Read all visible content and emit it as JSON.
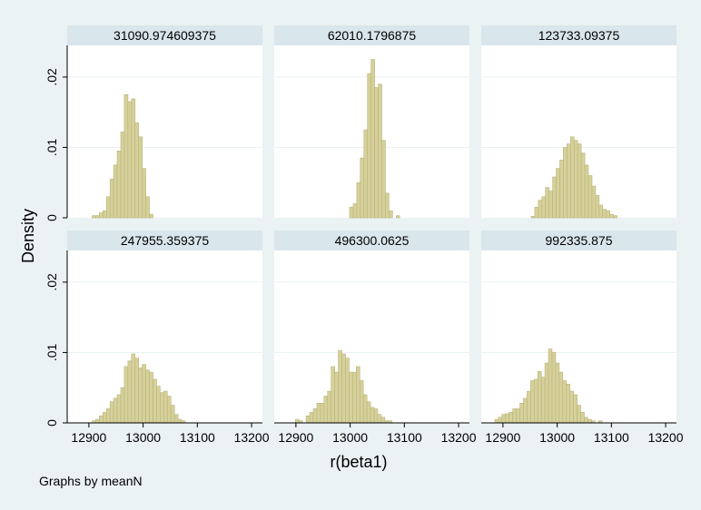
{
  "chart_data": {
    "type": "histogram",
    "ylabel": "Density",
    "xlabel": "r(beta1)",
    "note": "Graphs by meanN",
    "xlim": [
      12860,
      13220
    ],
    "ylim": [
      0,
      0.0245
    ],
    "xticks": [
      12900,
      13000,
      13100,
      13200
    ],
    "xtick_labels": [
      "12900",
      "13000",
      "13100",
      "13200"
    ],
    "yticks": [
      0,
      0.01,
      0.02
    ],
    "ytick_labels": [
      "0",
      ".01",
      ".02"
    ],
    "bin_width": 6.6,
    "bar_color": "#d6d19a",
    "bar_edge": "#b9b37a",
    "panels": [
      {
        "title": "31090.974609375",
        "bin_start": 12906,
        "densities": [
          0.0003,
          0.0003,
          0.0007,
          0.001,
          0.003,
          0.0055,
          0.0075,
          0.0095,
          0.0122,
          0.0175,
          0.0165,
          0.0169,
          0.0135,
          0.0115,
          0.007,
          0.003,
          0.0005
        ]
      },
      {
        "title": "62010.1796875",
        "bin_start": 12999,
        "densities": [
          0.0015,
          0.002,
          0.005,
          0.0085,
          0.0125,
          0.0205,
          0.0225,
          0.0185,
          0.019,
          0.011,
          0.0035,
          0.001,
          0.0,
          0.0003
        ]
      },
      {
        "title": "123733.09375",
        "bin_start": 12952,
        "densities": [
          0.0002,
          0.0015,
          0.0025,
          0.003,
          0.0043,
          0.0038,
          0.0058,
          0.007,
          0.0082,
          0.01,
          0.0105,
          0.0115,
          0.011,
          0.0105,
          0.0092,
          0.0075,
          0.006,
          0.0045,
          0.0032,
          0.0018,
          0.0012,
          0.001,
          0.0005,
          0.0003
        ]
      },
      {
        "title": "247955.359375",
        "bin_start": 12906,
        "densities": [
          0.0003,
          0.0005,
          0.001,
          0.0015,
          0.002,
          0.003,
          0.0035,
          0.004,
          0.005,
          0.008,
          0.0088,
          0.0098,
          0.0092,
          0.0078,
          0.0083,
          0.0075,
          0.0072,
          0.0062,
          0.0052,
          0.0043,
          0.0045,
          0.0038,
          0.0025,
          0.0012,
          0.0005,
          0.0003
        ]
      },
      {
        "title": "496300.0625",
        "bin_start": 12899,
        "densities": [
          0.0005,
          0.0003,
          0.0,
          0.001,
          0.0015,
          0.002,
          0.0028,
          0.0028,
          0.0038,
          0.0045,
          0.008,
          0.0072,
          0.0103,
          0.0098,
          0.0092,
          0.0072,
          0.0072,
          0.008,
          0.006,
          0.004,
          0.003,
          0.0022,
          0.002,
          0.0012,
          0.0008,
          0.0003,
          0.0003
        ]
      },
      {
        "title": "992335.875",
        "bin_start": 12885,
        "densities": [
          0.0005,
          0.0008,
          0.0012,
          0.0013,
          0.0015,
          0.002,
          0.002,
          0.0028,
          0.0035,
          0.0045,
          0.006,
          0.0062,
          0.0073,
          0.0065,
          0.0085,
          0.0105,
          0.01,
          0.0085,
          0.0072,
          0.006,
          0.0055,
          0.0045,
          0.004,
          0.0025,
          0.0015,
          0.0008,
          0.0005,
          0.0003,
          0.0,
          0.0003
        ]
      }
    ]
  }
}
